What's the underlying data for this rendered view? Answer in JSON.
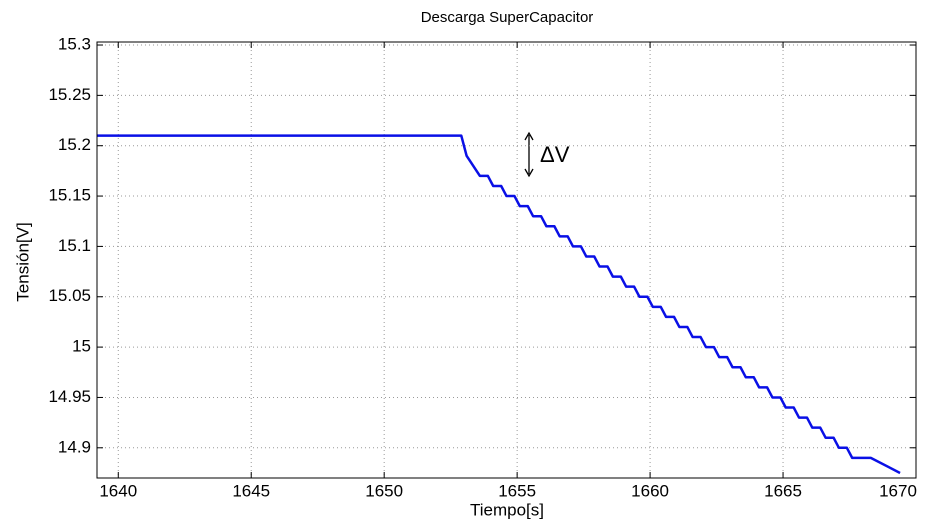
{
  "chart_data": {
    "type": "line",
    "title": "Descarga SuperCapacitor",
    "x_label": "Tiempo[s]",
    "y_label": "Tensión[V]",
    "annotation": "ΔV",
    "xlim": [
      1639.2,
      1670
    ],
    "xticks": [
      1640,
      1645,
      1650,
      1655,
      1660,
      1665,
      1670
    ],
    "ylim": [
      14.87,
      15.303
    ],
    "yticks": [
      14.9,
      14.95,
      15,
      15.05,
      15.1,
      15.15,
      15.2,
      15.25,
      15.3
    ],
    "grid": true,
    "series": [
      {
        "color": "#0a10e6",
        "x": [
          1639.2,
          1652.9,
          1653.1,
          1653.6,
          1653.9,
          1654.1,
          1654.4,
          1654.6,
          1654.9,
          1655.1,
          1655.4,
          1655.6,
          1655.9,
          1656.1,
          1656.4,
          1656.6,
          1656.9,
          1657.1,
          1657.4,
          1657.6,
          1657.9,
          1658.1,
          1658.4,
          1658.6,
          1658.9,
          1659.1,
          1659.4,
          1659.6,
          1659.9,
          1660.1,
          1660.4,
          1660.6,
          1660.9,
          1661.1,
          1661.4,
          1661.6,
          1661.9,
          1662.1,
          1662.4,
          1662.6,
          1662.9,
          1663.1,
          1663.4,
          1663.6,
          1663.9,
          1664.1,
          1664.4,
          1664.6,
          1664.9,
          1665.1,
          1665.4,
          1665.6,
          1665.9,
          1666.1,
          1666.4,
          1666.6,
          1666.9,
          1667.1,
          1667.4,
          1667.6,
          1668.3,
          1669.4
        ],
        "values": [
          15.21,
          15.21,
          15.19,
          15.17,
          15.17,
          15.16,
          15.16,
          15.15,
          15.15,
          15.14,
          15.14,
          15.13,
          15.13,
          15.12,
          15.12,
          15.11,
          15.11,
          15.1,
          15.1,
          15.09,
          15.09,
          15.08,
          15.08,
          15.07,
          15.07,
          15.06,
          15.06,
          15.05,
          15.05,
          15.04,
          15.04,
          15.03,
          15.03,
          15.02,
          15.02,
          15.01,
          15.01,
          15,
          15,
          14.99,
          14.99,
          14.98,
          14.98,
          14.97,
          14.97,
          14.96,
          14.96,
          14.95,
          14.95,
          14.94,
          14.94,
          14.93,
          14.93,
          14.92,
          14.92,
          14.91,
          14.91,
          14.9,
          14.9,
          14.89,
          14.89,
          14.875
        ]
      }
    ]
  }
}
